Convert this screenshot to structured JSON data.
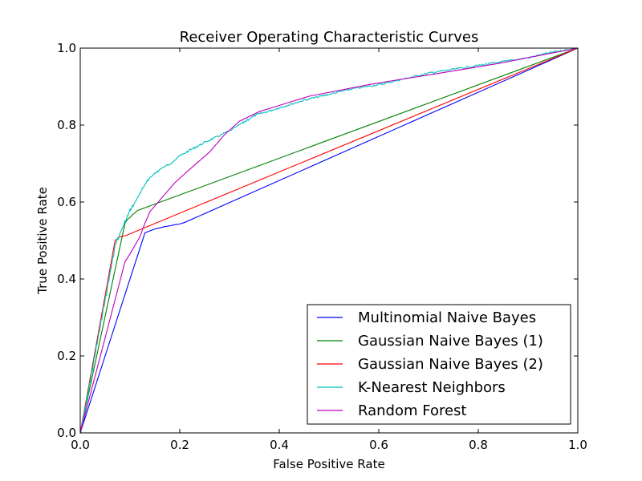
{
  "chart_data": {
    "type": "line",
    "title": "Receiver Operating Characteristic Curves",
    "xlabel": "False Positive Rate",
    "ylabel": "True Positive Rate",
    "xlim": [
      0.0,
      1.0
    ],
    "ylim": [
      0.0,
      1.0
    ],
    "xticks": [
      "0.0",
      "0.2",
      "0.4",
      "0.6",
      "0.8",
      "1.0"
    ],
    "yticks": [
      "0.0",
      "0.2",
      "0.4",
      "0.6",
      "0.8",
      "1.0"
    ],
    "grid": false,
    "legend_position": "lower-right",
    "series": [
      {
        "name": "Multinomial Naive Bayes",
        "color": "#0000ff",
        "x": [
          0.0,
          0.13,
          0.14,
          0.15,
          0.16,
          0.17,
          0.18,
          0.19,
          0.2,
          0.21,
          1.0
        ],
        "y": [
          0.0,
          0.52,
          0.525,
          0.53,
          0.533,
          0.536,
          0.538,
          0.541,
          0.543,
          0.547,
          1.0
        ]
      },
      {
        "name": "Gaussian Naive Bayes (1)",
        "color": "#008000",
        "x": [
          0.0,
          0.09,
          0.095,
          0.1,
          0.105,
          0.11,
          0.115,
          1.0
        ],
        "y": [
          0.0,
          0.545,
          0.555,
          0.56,
          0.567,
          0.572,
          0.578,
          1.0
        ]
      },
      {
        "name": "Gaussian Naive Bayes (2)",
        "color": "#ff0000",
        "x": [
          0.0,
          0.07,
          0.08,
          0.09,
          1.0
        ],
        "y": [
          0.0,
          0.5,
          0.51,
          0.512,
          1.0
        ]
      },
      {
        "name": "K-Nearest Neighbors",
        "color": "#00bfbf",
        "x": [
          0.0,
          0.07,
          0.08,
          0.09,
          0.1,
          0.11,
          0.12,
          0.13,
          0.14,
          0.15,
          0.16,
          0.18,
          0.2,
          0.22,
          0.25,
          0.3,
          0.35,
          0.4,
          0.45,
          0.5,
          0.55,
          0.6,
          0.65,
          0.7,
          0.75,
          0.8,
          0.85,
          0.9,
          0.95,
          1.0
        ],
        "y": [
          0.0,
          0.49,
          0.52,
          0.55,
          0.58,
          0.6,
          0.625,
          0.645,
          0.665,
          0.675,
          0.685,
          0.7,
          0.72,
          0.735,
          0.755,
          0.785,
          0.825,
          0.845,
          0.865,
          0.88,
          0.895,
          0.905,
          0.92,
          0.935,
          0.945,
          0.955,
          0.965,
          0.975,
          0.99,
          1.0
        ],
        "jagged": true
      },
      {
        "name": "Random Forest",
        "color": "#bf00bf",
        "x": [
          0.0,
          0.09,
          0.1,
          0.12,
          0.13,
          0.14,
          0.16,
          0.19,
          0.22,
          0.26,
          0.29,
          0.32,
          0.36,
          0.41,
          0.46,
          0.52,
          0.58,
          0.64,
          0.7,
          0.77,
          0.84,
          0.92,
          1.0
        ],
        "y": [
          0.0,
          0.445,
          0.465,
          0.51,
          0.545,
          0.575,
          0.605,
          0.65,
          0.685,
          0.73,
          0.775,
          0.81,
          0.835,
          0.855,
          0.875,
          0.89,
          0.905,
          0.918,
          0.93,
          0.945,
          0.96,
          0.98,
          1.0
        ]
      }
    ]
  }
}
